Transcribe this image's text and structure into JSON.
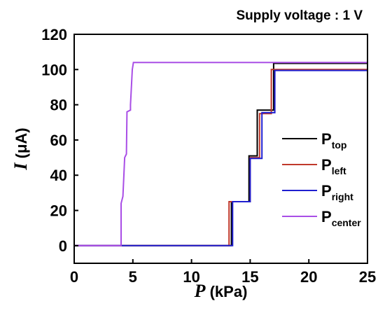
{
  "chart_data": {
    "type": "line",
    "title": "Supply voltage : 1 V",
    "xlabel": {
      "var": "P",
      "unit": " (kPa)"
    },
    "ylabel": {
      "var": "I",
      "unit": " (μA)"
    },
    "xlim": [
      0,
      25
    ],
    "ylim": [
      -10,
      120
    ],
    "xticks": [
      0,
      5,
      10,
      15,
      20,
      25
    ],
    "yticks": [
      0,
      20,
      40,
      60,
      80,
      100,
      120
    ],
    "grid": false,
    "legend_position": "lower-right",
    "series": [
      {
        "name": "P",
        "sub": "top",
        "color": "#000000",
        "x": [
          0,
          13.4,
          13.4,
          14.9,
          14.9,
          15.6,
          15.6,
          16.8,
          16.8,
          17.0,
          17.0,
          25
        ],
        "y": [
          0,
          0,
          25,
          25,
          51,
          51,
          77,
          77,
          77,
          77,
          103.5,
          103.5
        ]
      },
      {
        "name": "P",
        "sub": "left",
        "color": "#c0392b",
        "x": [
          0,
          13.2,
          13.2,
          15.0,
          15.0,
          15.8,
          15.8,
          16.8,
          16.8,
          25
        ],
        "y": [
          0,
          0,
          25,
          25,
          50,
          50,
          75,
          75,
          100,
          100
        ]
      },
      {
        "name": "P",
        "sub": "right",
        "color": "#1f1fd0",
        "x": [
          0,
          13.5,
          13.5,
          15.0,
          15.0,
          16.0,
          16.0,
          17.1,
          17.1,
          25
        ],
        "y": [
          0,
          0,
          25,
          25,
          49.5,
          49.5,
          75.5,
          75.5,
          99.5,
          99.5
        ]
      },
      {
        "name": "P",
        "sub": "center",
        "color": "#a94ee6",
        "x": [
          0,
          4.0,
          4.0,
          4.15,
          4.3,
          4.3,
          4.45,
          4.5,
          4.5,
          4.8,
          4.8,
          4.95,
          5.05,
          25
        ],
        "y": [
          0,
          0,
          24,
          28,
          50,
          50,
          52,
          76,
          76,
          77,
          80,
          100,
          104,
          104
        ]
      }
    ]
  }
}
